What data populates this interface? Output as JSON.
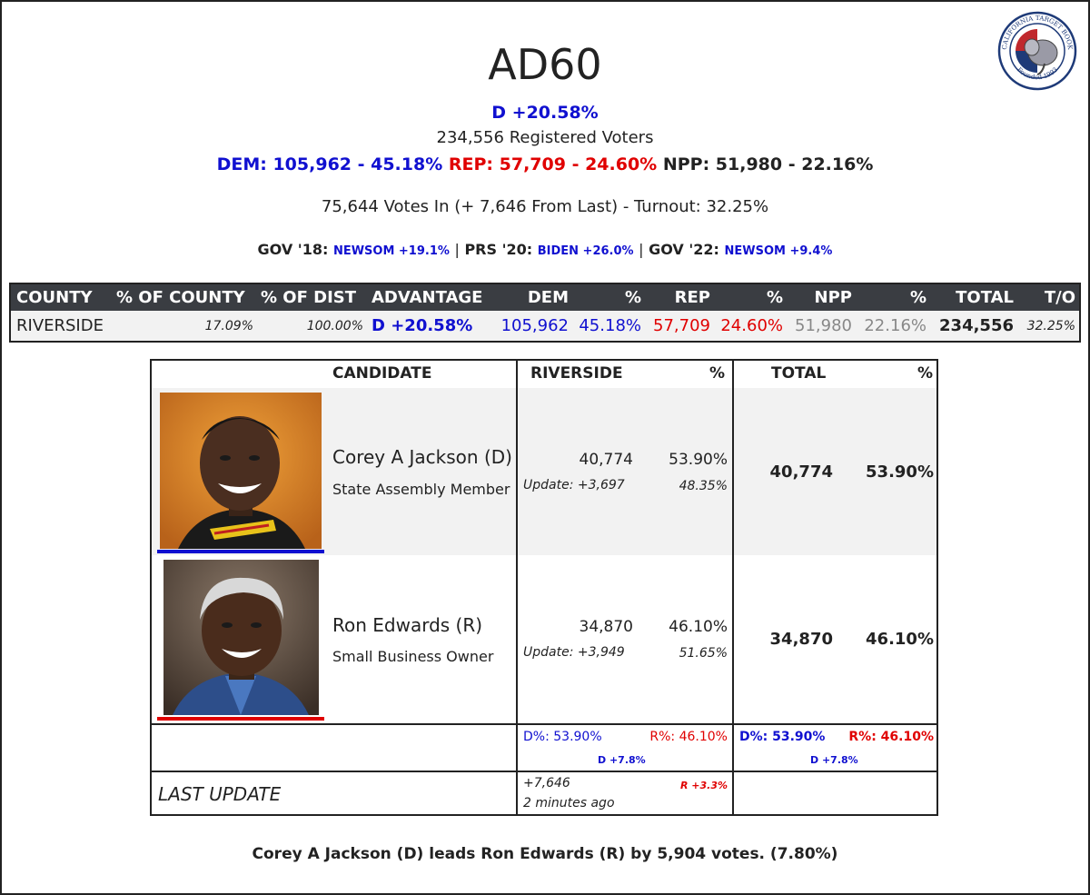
{
  "header": {
    "title": "AD60",
    "advantage": "D +20.58%",
    "registered": "234,556 Registered Voters",
    "dem": "DEM: 105,962 - 45.18%",
    "rep": "REP: 57,709 - 24.60%",
    "npp": "NPP: 51,980 - 22.16%",
    "votes_in": "75,644 Votes In (+ 7,646 From Last) - Turnout: 32.25%",
    "hist": {
      "gov18_label": "GOV '18:",
      "gov18_val": "NEWSOM +19.1%",
      "prs20_label": "PRS '20:",
      "prs20_val": "BIDEN +26.0%",
      "gov22_label": "GOV '22:",
      "gov22_val": "NEWSOM +9.4%",
      "sep": "|"
    },
    "logo_text": "CALIFORNIA TARGET BOOK",
    "logo_sub": "Founded 1993"
  },
  "colors": {
    "dem": "#1010d0",
    "rep": "#e00000",
    "header_bg": "#3a3d42"
  },
  "county_table": {
    "headers": [
      "COUNTY",
      "% OF COUNTY",
      "% OF DIST",
      "ADVANTAGE",
      "DEM",
      "%",
      "REP",
      "%",
      "NPP",
      "%",
      "TOTAL",
      "T/O"
    ],
    "row": {
      "county": "RIVERSIDE",
      "pct_county": "17.09%",
      "pct_dist": "100.00%",
      "advantage": "D +20.58%",
      "dem": "105,962",
      "dem_pct": "45.18%",
      "rep": "57,709",
      "rep_pct": "24.60%",
      "npp": "51,980",
      "npp_pct": "22.16%",
      "total": "234,556",
      "turnout": "32.25%"
    }
  },
  "candidate_table": {
    "headers": {
      "candidate": "CANDIDATE",
      "county": "RIVERSIDE",
      "pct": "%",
      "total": "TOTAL",
      "total_pct": "%"
    },
    "candidates": [
      {
        "name": "Corey A Jackson (D)",
        "occupation": "State Assembly Member",
        "votes": "40,774",
        "pct": "53.90%",
        "update": "Update: +3,697",
        "update_pct": "48.35%",
        "total": "40,774",
        "total_pct": "53.90%",
        "party_color": "#1010d0"
      },
      {
        "name": "Ron Edwards (R)",
        "occupation": "Small Business Owner",
        "votes": "34,870",
        "pct": "46.10%",
        "update": "Update: +3,949",
        "update_pct": "51.65%",
        "total": "34,870",
        "total_pct": "46.10%",
        "party_color": "#e00000"
      }
    ],
    "share_row": {
      "county_d": "D%: 53.90%",
      "county_r": "R%: 46.10%",
      "county_margin": "D +7.8%",
      "total_d": "D%: 53.90%",
      "total_r": "R%: 46.10%",
      "total_margin": "D +7.8%"
    },
    "last_update": {
      "label": "LAST UPDATE",
      "delta": "+7,646",
      "ago": "2 minutes ago",
      "margin": "R +3.3%"
    }
  },
  "summary": "Corey A Jackson (D) leads Ron Edwards (R) by 5,904 votes. (7.80%)"
}
